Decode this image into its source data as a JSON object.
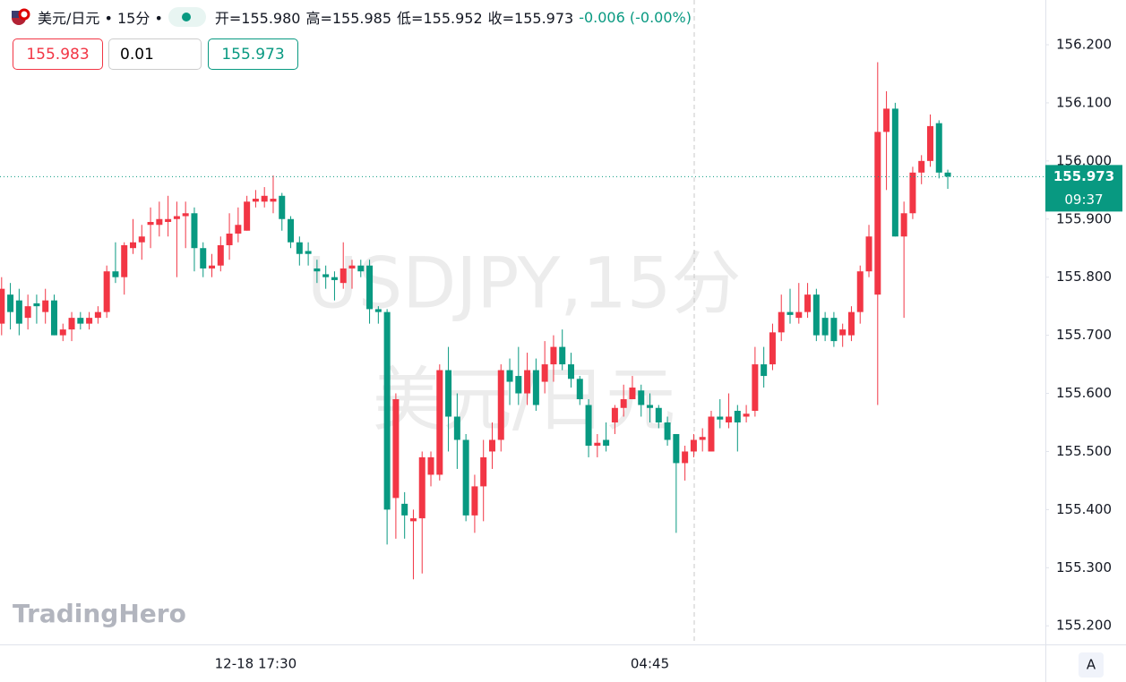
{
  "header": {
    "title": "美元/日元 • 15分 •",
    "open": "开=155.980",
    "high": "高=155.985",
    "low": "低=155.952",
    "close": "收=155.973",
    "change": "-0.006 (-0.00%)",
    "sell": "155.983",
    "qty": "0.01",
    "buy": "155.973"
  },
  "watermark": {
    "line1": "USDJPY,15分",
    "line2": "美元/日元"
  },
  "logo": "TradingHero",
  "axis_button": "A",
  "chart_data": {
    "type": "candlestick",
    "categories": [
      null,
      null,
      null,
      null,
      null,
      null,
      null,
      null,
      null,
      null,
      null,
      null,
      null,
      null,
      null,
      null,
      null,
      null,
      null,
      null,
      null,
      null,
      null,
      null,
      null,
      null,
      null,
      null,
      null,
      "12-18 17:30",
      null,
      null,
      null,
      null,
      null,
      null,
      null,
      null,
      null,
      null,
      null,
      null,
      null,
      null,
      null,
      null,
      null,
      null,
      null,
      null,
      null,
      null,
      null,
      null,
      null,
      null,
      null,
      null,
      null,
      null,
      null,
      null,
      null,
      null,
      null,
      null,
      null,
      null,
      null,
      null,
      null,
      null,
      null,
      null,
      "04:45",
      null,
      null,
      null,
      null,
      null,
      null,
      null,
      null,
      null,
      null,
      null,
      null,
      null,
      null,
      null,
      null,
      null,
      null,
      null,
      null,
      null,
      null,
      null,
      null,
      null,
      null,
      null,
      null,
      null,
      null,
      null,
      null,
      null,
      null
    ],
    "open": [
      155.72,
      155.77,
      155.76,
      155.73,
      155.755,
      155.74,
      155.76,
      155.7,
      155.71,
      155.73,
      155.72,
      155.73,
      155.74,
      155.81,
      155.8,
      155.85,
      155.86,
      155.89,
      155.89,
      155.895,
      155.9,
      155.905,
      155.91,
      155.85,
      155.815,
      155.82,
      155.855,
      155.875,
      155.88,
      155.93,
      155.93,
      155.93,
      155.94,
      155.9,
      155.86,
      155.845,
      155.815,
      155.805,
      155.8,
      155.79,
      155.815,
      155.82,
      155.82,
      155.745,
      155.74,
      155.42,
      155.41,
      155.38,
      155.385,
      155.46,
      155.46,
      155.64,
      155.56,
      155.52,
      155.39,
      155.44,
      155.5,
      155.52,
      155.64,
      155.63,
      155.6,
      155.64,
      155.62,
      155.65,
      155.68,
      155.65,
      155.625,
      155.58,
      155.51,
      155.52,
      155.55,
      155.575,
      155.59,
      155.605,
      155.58,
      155.575,
      155.55,
      155.53,
      155.48,
      155.5,
      155.52,
      155.5,
      155.56,
      155.55,
      155.57,
      155.56,
      155.57,
      155.65,
      155.65,
      155.705,
      155.74,
      155.73,
      155.74,
      155.77,
      155.73,
      155.73,
      155.7,
      155.7,
      155.74,
      155.81,
      155.77,
      156.05,
      156.09,
      155.87,
      155.91,
      155.98,
      156.0,
      156.065,
      155.98
    ],
    "high": [
      155.8,
      155.79,
      155.78,
      155.77,
      155.77,
      155.78,
      155.77,
      155.72,
      155.74,
      155.74,
      155.74,
      155.75,
      155.82,
      155.86,
      155.86,
      155.9,
      155.89,
      155.92,
      155.93,
      155.94,
      155.93,
      155.93,
      155.92,
      155.86,
      155.84,
      155.87,
      155.91,
      155.92,
      155.94,
      155.95,
      155.955,
      155.975,
      155.945,
      155.905,
      155.87,
      155.86,
      155.83,
      155.82,
      155.81,
      155.86,
      155.83,
      155.83,
      155.83,
      155.75,
      155.745,
      155.6,
      155.43,
      155.4,
      155.5,
      155.5,
      155.65,
      155.68,
      155.6,
      155.53,
      155.46,
      155.52,
      155.55,
      155.65,
      155.66,
      155.68,
      155.67,
      155.66,
      155.69,
      155.7,
      155.71,
      155.67,
      155.63,
      155.59,
      155.53,
      155.55,
      155.58,
      155.615,
      155.63,
      155.615,
      155.6,
      155.58,
      155.56,
      155.53,
      155.51,
      155.53,
      155.54,
      155.57,
      155.59,
      155.6,
      155.58,
      155.58,
      155.68,
      155.68,
      155.72,
      155.77,
      155.78,
      155.79,
      155.79,
      155.78,
      155.74,
      155.74,
      155.72,
      155.75,
      155.82,
      155.89,
      156.17,
      156.12,
      156.1,
      155.93,
      155.99,
      156.01,
      156.08,
      156.07,
      155.985
    ],
    "low": [
      155.7,
      155.71,
      155.7,
      155.71,
      155.72,
      155.72,
      155.7,
      155.69,
      155.69,
      155.71,
      155.71,
      155.72,
      155.73,
      155.79,
      155.77,
      155.84,
      155.83,
      155.85,
      155.87,
      155.87,
      155.8,
      155.85,
      155.81,
      155.8,
      155.8,
      155.81,
      155.83,
      155.86,
      155.88,
      155.92,
      155.92,
      155.91,
      155.88,
      155.85,
      155.82,
      155.82,
      155.79,
      155.78,
      155.76,
      155.78,
      155.78,
      155.8,
      155.72,
      155.72,
      155.34,
      155.35,
      155.35,
      155.28,
      155.29,
      155.44,
      155.45,
      155.5,
      155.47,
      155.38,
      155.36,
      155.38,
      155.47,
      155.5,
      155.58,
      155.58,
      155.58,
      155.57,
      155.6,
      155.62,
      155.64,
      155.61,
      155.58,
      155.49,
      155.49,
      155.5,
      155.53,
      155.56,
      155.59,
      155.56,
      155.55,
      155.54,
      155.51,
      155.36,
      155.45,
      155.49,
      155.5,
      155.5,
      155.54,
      155.54,
      155.5,
      155.55,
      155.56,
      155.61,
      155.64,
      155.69,
      155.72,
      155.72,
      155.73,
      155.69,
      155.69,
      155.68,
      155.68,
      155.69,
      155.72,
      155.8,
      155.58,
      155.95,
      155.87,
      155.73,
      155.9,
      155.96,
      155.99,
      155.97,
      155.952
    ],
    "close": [
      155.78,
      155.74,
      155.72,
      155.75,
      155.75,
      155.76,
      155.7,
      155.71,
      155.73,
      155.72,
      155.73,
      155.74,
      155.81,
      155.8,
      155.855,
      155.86,
      155.87,
      155.895,
      155.9,
      155.9,
      155.905,
      155.91,
      155.85,
      155.815,
      155.82,
      155.855,
      155.875,
      155.89,
      155.93,
      155.935,
      155.94,
      155.935,
      155.9,
      155.86,
      155.84,
      155.84,
      155.81,
      155.8,
      155.795,
      155.815,
      155.82,
      155.81,
      155.745,
      155.74,
      155.4,
      155.59,
      155.39,
      155.385,
      155.49,
      155.49,
      155.64,
      155.56,
      155.52,
      155.39,
      155.44,
      155.49,
      155.52,
      155.64,
      155.62,
      155.6,
      155.64,
      155.58,
      155.65,
      155.68,
      155.65,
      155.625,
      155.59,
      155.51,
      155.515,
      155.51,
      155.575,
      155.59,
      155.61,
      155.58,
      155.575,
      155.55,
      155.52,
      155.48,
      155.5,
      155.52,
      155.525,
      155.56,
      155.555,
      155.56,
      155.55,
      155.565,
      155.65,
      155.63,
      155.705,
      155.74,
      155.735,
      155.74,
      155.77,
      155.7,
      155.7,
      155.69,
      155.71,
      155.74,
      155.81,
      155.87,
      156.05,
      156.09,
      155.87,
      155.91,
      155.98,
      156.0,
      156.06,
      155.98,
      155.973
    ],
    "up_color": "#f23645",
    "down_color": "#089981",
    "ylim": [
      155.168,
      156.277
    ],
    "yticks": [
      {
        "value": 155.2,
        "label": "155.200"
      },
      {
        "value": 155.3,
        "label": "155.300"
      },
      {
        "value": 155.4,
        "label": "155.400"
      },
      {
        "value": 155.5,
        "label": "155.500"
      },
      {
        "value": 155.6,
        "label": "155.600"
      },
      {
        "value": 155.7,
        "label": "155.700"
      },
      {
        "value": 155.8,
        "label": "155.800"
      },
      {
        "value": 155.9,
        "label": "155.900"
      },
      {
        "value": 156.0,
        "label": "156.000"
      },
      {
        "value": 156.1,
        "label": "156.100"
      },
      {
        "value": 156.2,
        "label": "156.200"
      }
    ],
    "last_price": 155.973,
    "countdown": "09:37",
    "grid": false
  }
}
